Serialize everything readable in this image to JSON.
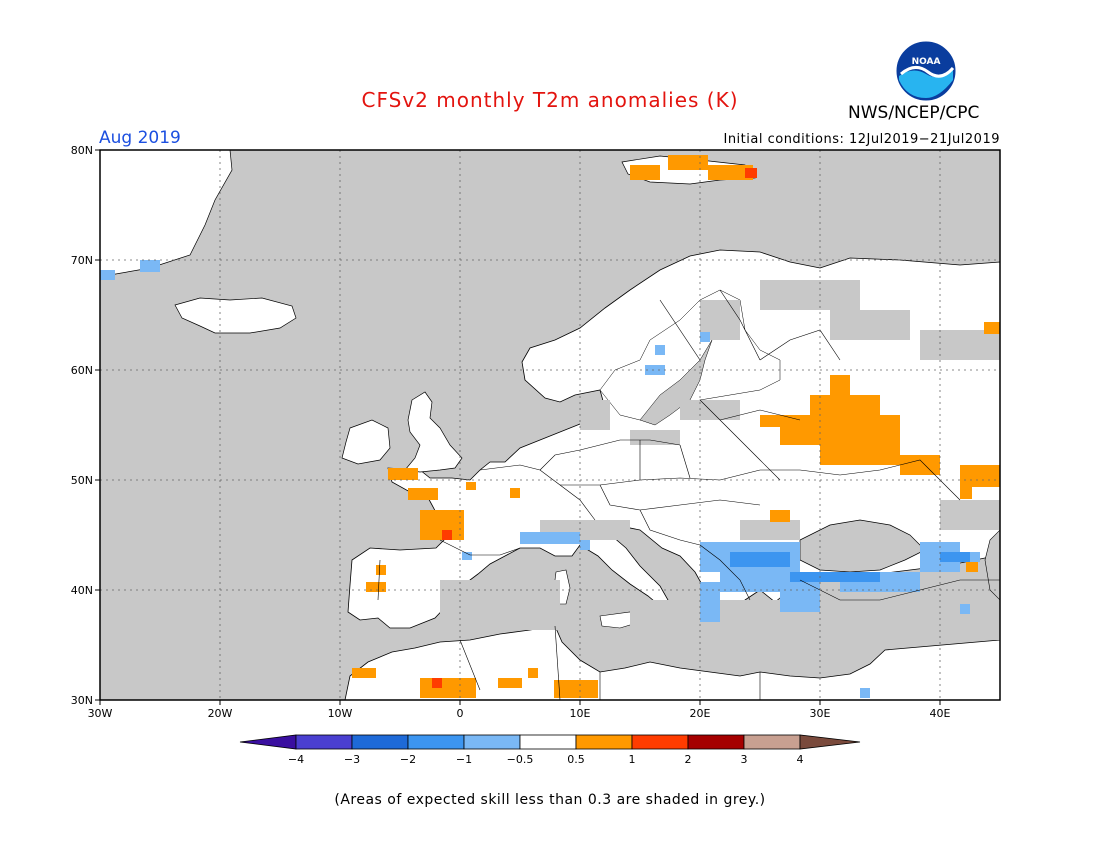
{
  "header": {
    "title": "CFSv2 monthly T2m anomalies (K)",
    "agency": "NWS/NCEP/CPC",
    "logo_text": "NOAA",
    "month": "Aug 2019",
    "initial_conditions": "Initial conditions: 12Jul2019−21Jul2019"
  },
  "map": {
    "lon_range": [
      -30,
      45
    ],
    "lat_range": [
      30,
      80
    ],
    "lon_ticks": [
      "30W",
      "20W",
      "10W",
      "0",
      "10E",
      "20E",
      "30E",
      "40E"
    ],
    "lat_ticks": [
      "30N",
      "40N",
      "50N",
      "60N",
      "70N",
      "80N"
    ],
    "low_skill_color": "#c8c8c8",
    "anomaly_regions": [
      {
        "name": "western-russia",
        "category": "0.5 to 1",
        "lon": [
          24,
          38
        ],
        "lat": [
          50,
          57
        ]
      },
      {
        "name": "southwest-russia-east",
        "category": "0.5 to 1",
        "lon": [
          38,
          45
        ],
        "lat": [
          49,
          52
        ]
      },
      {
        "name": "svalbard",
        "category": "0.5 to 1",
        "lon": [
          15,
          25
        ],
        "lat": [
          78,
          80
        ]
      },
      {
        "name": "western-france",
        "category": "0.5 to 1",
        "lon": [
          -4,
          0
        ],
        "lat": [
          45,
          48
        ]
      },
      {
        "name": "brittany-channel",
        "category": "0.5 to 1",
        "lon": [
          -6,
          -2
        ],
        "lat": [
          49,
          50
        ]
      },
      {
        "name": "north-africa",
        "category": "0.5 to 1",
        "lon": [
          -2,
          1
        ],
        "lat": [
          30,
          31
        ]
      },
      {
        "name": "turkey-balkans",
        "category": "-1 to -0.5",
        "lon": [
          21,
          37
        ],
        "lat": [
          38,
          44
        ]
      },
      {
        "name": "southern-france",
        "category": "-1 to -0.5",
        "lon": [
          5,
          10
        ],
        "lat": [
          43,
          44
        ]
      }
    ]
  },
  "colorbar": {
    "labels": [
      "−4",
      "−3",
      "−2",
      "−1",
      "−0.5",
      "0.5",
      "1",
      "2",
      "3",
      "4"
    ],
    "colors": [
      "#3a0fa0",
      "#4a3fd0",
      "#1e6ad8",
      "#3c95f0",
      "#7ab8f5",
      "#ffffff",
      "#ff9900",
      "#ff3c00",
      "#a50000",
      "#c8a091",
      "#7a4a3c"
    ]
  },
  "footnote": "(Areas of expected skill less than 0.3 are shaded in grey.)"
}
